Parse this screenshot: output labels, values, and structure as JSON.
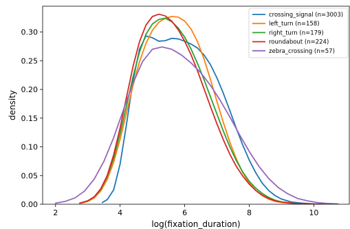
{
  "chart_data": {
    "type": "line",
    "title": "",
    "xlabel": "log(fixation_duration)",
    "ylabel": "density",
    "xlim": [
      1.6,
      11.1
    ],
    "ylim": [
      0,
      0.345
    ],
    "xticks": [
      2,
      4,
      6,
      8,
      10
    ],
    "yticks": [
      0.0,
      0.05,
      0.1,
      0.15,
      0.2,
      0.25,
      0.3
    ],
    "ytick_labels": [
      "0.00",
      "0.05",
      "0.10",
      "0.15",
      "0.20",
      "0.25",
      "0.30"
    ],
    "grid": false,
    "legend_position": "top-right",
    "series": [
      {
        "name": "crossing_signal (n=3003)",
        "color": "#1f77b4",
        "points": [
          [
            3.45,
            0.003
          ],
          [
            3.6,
            0.008
          ],
          [
            3.8,
            0.025
          ],
          [
            4.0,
            0.07
          ],
          [
            4.2,
            0.14
          ],
          [
            4.4,
            0.215
          ],
          [
            4.6,
            0.27
          ],
          [
            4.8,
            0.293
          ],
          [
            5.0,
            0.29
          ],
          [
            5.2,
            0.284
          ],
          [
            5.4,
            0.285
          ],
          [
            5.6,
            0.289
          ],
          [
            5.8,
            0.288
          ],
          [
            6.0,
            0.284
          ],
          [
            6.2,
            0.279
          ],
          [
            6.4,
            0.272
          ],
          [
            6.6,
            0.26
          ],
          [
            6.8,
            0.243
          ],
          [
            7.0,
            0.22
          ],
          [
            7.2,
            0.193
          ],
          [
            7.4,
            0.163
          ],
          [
            7.6,
            0.132
          ],
          [
            7.8,
            0.103
          ],
          [
            8.0,
            0.077
          ],
          [
            8.2,
            0.055
          ],
          [
            8.4,
            0.037
          ],
          [
            8.6,
            0.024
          ],
          [
            8.8,
            0.015
          ],
          [
            9.0,
            0.009
          ],
          [
            9.3,
            0.004
          ],
          [
            9.6,
            0.002
          ],
          [
            10.0,
            0.0006
          ],
          [
            10.4,
            0.0002
          ]
        ]
      },
      {
        "name": "left_turn (n=158)",
        "color": "#ff7f0e",
        "points": [
          [
            2.8,
            0.002
          ],
          [
            3.0,
            0.005
          ],
          [
            3.2,
            0.011
          ],
          [
            3.4,
            0.023
          ],
          [
            3.6,
            0.043
          ],
          [
            3.8,
            0.073
          ],
          [
            4.0,
            0.113
          ],
          [
            4.2,
            0.16
          ],
          [
            4.4,
            0.207
          ],
          [
            4.6,
            0.248
          ],
          [
            4.8,
            0.28
          ],
          [
            5.0,
            0.303
          ],
          [
            5.2,
            0.317
          ],
          [
            5.4,
            0.324
          ],
          [
            5.6,
            0.327
          ],
          [
            5.8,
            0.326
          ],
          [
            6.0,
            0.319
          ],
          [
            6.2,
            0.305
          ],
          [
            6.4,
            0.283
          ],
          [
            6.6,
            0.253
          ],
          [
            6.8,
            0.217
          ],
          [
            7.0,
            0.179
          ],
          [
            7.2,
            0.142
          ],
          [
            7.4,
            0.108
          ],
          [
            7.6,
            0.079
          ],
          [
            7.8,
            0.055
          ],
          [
            8.0,
            0.037
          ],
          [
            8.2,
            0.024
          ],
          [
            8.4,
            0.015
          ],
          [
            8.6,
            0.009
          ],
          [
            8.8,
            0.005
          ],
          [
            9.0,
            0.003
          ],
          [
            9.4,
            0.001
          ],
          [
            10.0,
            0.0002
          ]
        ]
      },
      {
        "name": "right_turn (n=179)",
        "color": "#2ca02c",
        "points": [
          [
            2.75,
            0.002
          ],
          [
            3.0,
            0.006
          ],
          [
            3.2,
            0.013
          ],
          [
            3.4,
            0.026
          ],
          [
            3.6,
            0.048
          ],
          [
            3.8,
            0.08
          ],
          [
            4.0,
            0.123
          ],
          [
            4.2,
            0.172
          ],
          [
            4.4,
            0.222
          ],
          [
            4.6,
            0.265
          ],
          [
            4.8,
            0.296
          ],
          [
            5.0,
            0.314
          ],
          [
            5.2,
            0.322
          ],
          [
            5.4,
            0.324
          ],
          [
            5.6,
            0.318
          ],
          [
            5.8,
            0.307
          ],
          [
            6.0,
            0.291
          ],
          [
            6.2,
            0.27
          ],
          [
            6.4,
            0.245
          ],
          [
            6.6,
            0.217
          ],
          [
            6.8,
            0.187
          ],
          [
            7.0,
            0.157
          ],
          [
            7.2,
            0.127
          ],
          [
            7.4,
            0.1
          ],
          [
            7.6,
            0.076
          ],
          [
            7.8,
            0.056
          ],
          [
            8.0,
            0.04
          ],
          [
            8.2,
            0.028
          ],
          [
            8.4,
            0.019
          ],
          [
            8.6,
            0.012
          ],
          [
            8.8,
            0.007
          ],
          [
            9.0,
            0.004
          ],
          [
            9.4,
            0.0015
          ],
          [
            10.0,
            0.0003
          ],
          [
            10.7,
            0.0001
          ]
        ]
      },
      {
        "name": "roundabout (n=224)",
        "color": "#d62728",
        "points": [
          [
            2.75,
            0.002
          ],
          [
            3.0,
            0.006
          ],
          [
            3.2,
            0.013
          ],
          [
            3.4,
            0.027
          ],
          [
            3.6,
            0.05
          ],
          [
            3.8,
            0.086
          ],
          [
            4.0,
            0.133
          ],
          [
            4.2,
            0.187
          ],
          [
            4.4,
            0.24
          ],
          [
            4.6,
            0.283
          ],
          [
            4.8,
            0.312
          ],
          [
            5.0,
            0.327
          ],
          [
            5.2,
            0.331
          ],
          [
            5.4,
            0.328
          ],
          [
            5.6,
            0.319
          ],
          [
            5.8,
            0.304
          ],
          [
            6.0,
            0.284
          ],
          [
            6.2,
            0.26
          ],
          [
            6.4,
            0.232
          ],
          [
            6.6,
            0.201
          ],
          [
            6.8,
            0.17
          ],
          [
            7.0,
            0.14
          ],
          [
            7.2,
            0.112
          ],
          [
            7.4,
            0.087
          ],
          [
            7.6,
            0.066
          ],
          [
            7.8,
            0.049
          ],
          [
            8.0,
            0.035
          ],
          [
            8.2,
            0.024
          ],
          [
            8.4,
            0.016
          ],
          [
            8.6,
            0.01
          ],
          [
            8.8,
            0.006
          ],
          [
            9.0,
            0.004
          ],
          [
            9.4,
            0.0015
          ],
          [
            10.0,
            0.0003
          ],
          [
            10.7,
            0.0001
          ]
        ]
      },
      {
        "name": "zebra_crossing (n=57)",
        "color": "#9467bd",
        "points": [
          [
            2.0,
            0.002
          ],
          [
            2.3,
            0.005
          ],
          [
            2.6,
            0.011
          ],
          [
            2.9,
            0.023
          ],
          [
            3.2,
            0.044
          ],
          [
            3.5,
            0.075
          ],
          [
            3.8,
            0.116
          ],
          [
            4.1,
            0.164
          ],
          [
            4.4,
            0.211
          ],
          [
            4.7,
            0.249
          ],
          [
            5.0,
            0.27
          ],
          [
            5.3,
            0.274
          ],
          [
            5.6,
            0.27
          ],
          [
            5.9,
            0.26
          ],
          [
            6.2,
            0.246
          ],
          [
            6.5,
            0.229
          ],
          [
            6.8,
            0.207
          ],
          [
            7.1,
            0.181
          ],
          [
            7.4,
            0.152
          ],
          [
            7.7,
            0.121
          ],
          [
            8.0,
            0.092
          ],
          [
            8.3,
            0.066
          ],
          [
            8.6,
            0.045
          ],
          [
            8.9,
            0.029
          ],
          [
            9.2,
            0.018
          ],
          [
            9.5,
            0.01
          ],
          [
            9.8,
            0.006
          ],
          [
            10.1,
            0.003
          ],
          [
            10.4,
            0.0015
          ],
          [
            10.75,
            0.0006
          ]
        ]
      }
    ]
  }
}
